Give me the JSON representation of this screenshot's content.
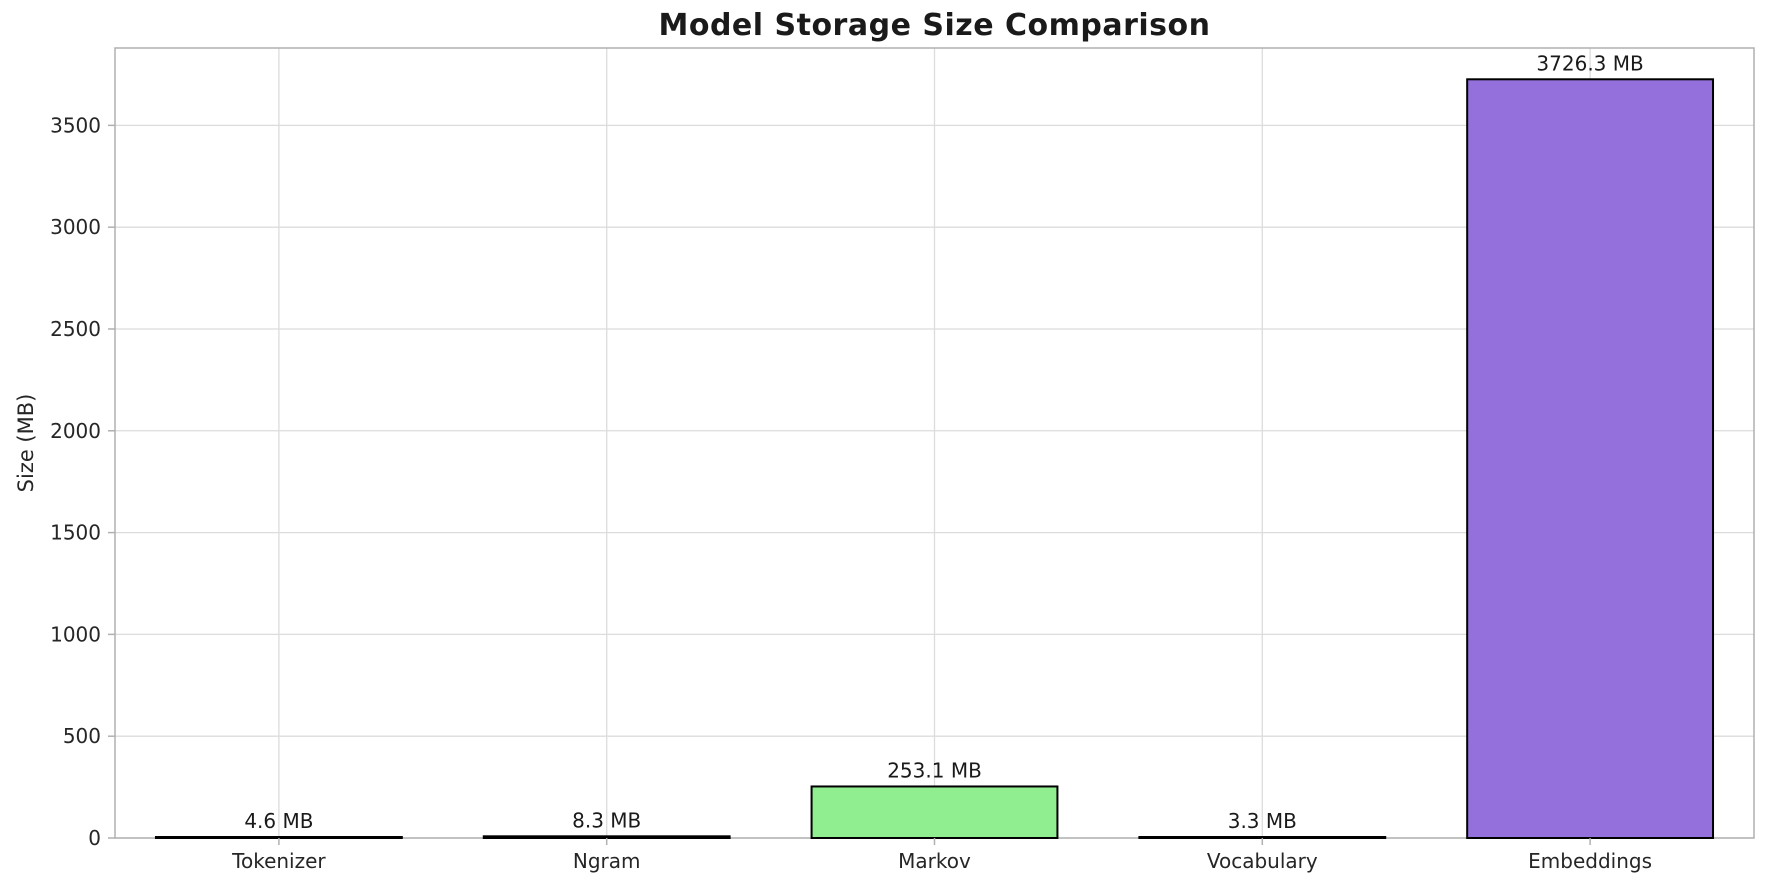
{
  "chart_data": {
    "type": "bar",
    "title": "Model Storage Size Comparison",
    "ylabel": "Size (MB)",
    "xlabel": "",
    "categories": [
      "Tokenizer",
      "Ngram",
      "Markov",
      "Vocabulary",
      "Embeddings"
    ],
    "values": [
      4.6,
      8.3,
      253.1,
      3.3,
      3726.3
    ],
    "value_labels": [
      "4.6 MB",
      "8.3 MB",
      "253.1 MB",
      "3.3 MB",
      "3726.3 MB"
    ],
    "bar_colors": [
      "#87CEEB",
      "#F08080",
      "#90EE90",
      "#FFD700",
      "#9370DB"
    ],
    "bar_edge_color": "#000000",
    "yticks": [
      0,
      500,
      1000,
      1500,
      2000,
      2500,
      3000,
      3500
    ],
    "ylim": [
      0,
      3880
    ],
    "grid": true,
    "grid_color": "#dcdcdc",
    "spine_color": "#b0b0b0",
    "text_color": "#262626",
    "background": "#ffffff",
    "legend": "none"
  }
}
